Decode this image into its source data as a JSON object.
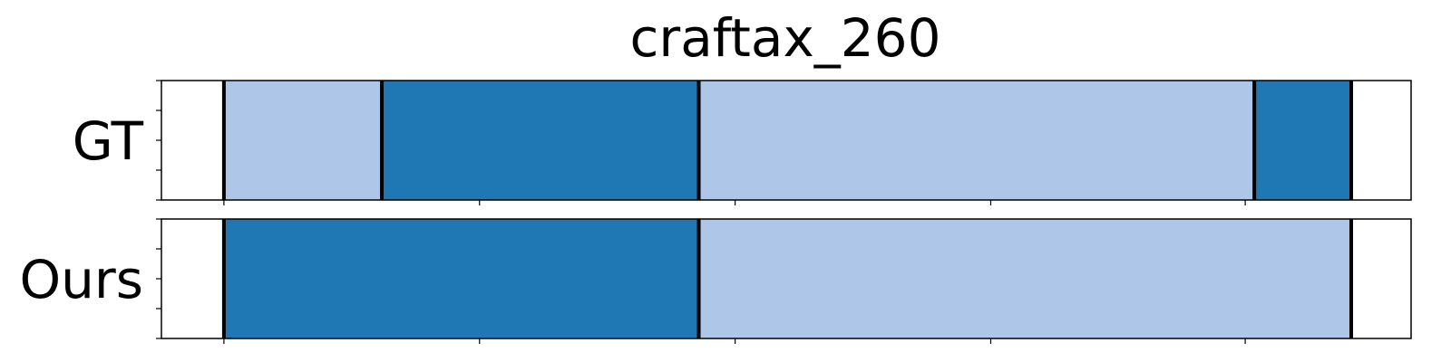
{
  "chart_data": {
    "type": "segment-timeline",
    "title": "craftax_260",
    "xlim": [
      0,
      110
    ],
    "boundary_color": "#000000",
    "colors": {
      "dark": "#1f77b4",
      "light": "#aec7e8"
    },
    "rows": [
      {
        "name": "GT",
        "segments": [
          {
            "start": 5.5,
            "end": 19.4,
            "color": "light"
          },
          {
            "start": 19.4,
            "end": 47.3,
            "color": "dark"
          },
          {
            "start": 47.3,
            "end": 96.2,
            "color": "light"
          },
          {
            "start": 96.2,
            "end": 117.0,
            "color": "dark"
          }
        ]
      },
      {
        "name": "Ours",
        "segments": [
          {
            "start": 5.5,
            "end": 47.3,
            "color": "dark"
          },
          {
            "start": 47.3,
            "end": 117.0,
            "color": "light"
          }
        ]
      }
    ],
    "x_ticks": [
      5.5,
      28.0,
      50.5,
      73.0,
      95.4,
      117.0
    ]
  }
}
